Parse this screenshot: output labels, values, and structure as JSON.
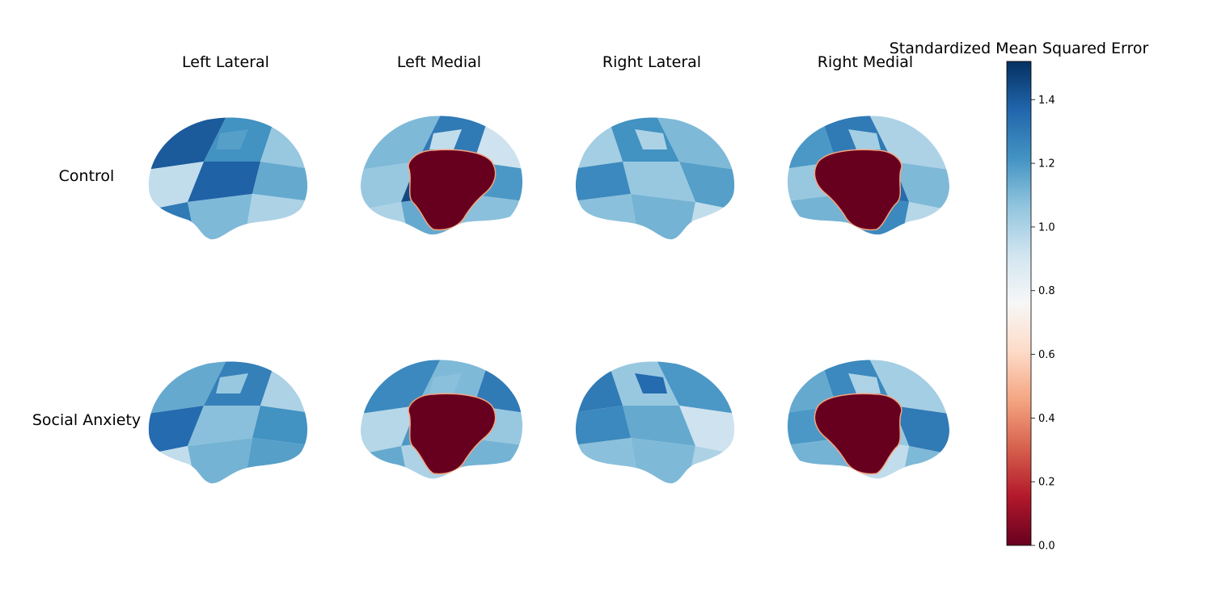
{
  "chart_data": {
    "type": "heatmap",
    "columns": [
      "Left Lateral",
      "Left Medial",
      "Right Lateral",
      "Right Medial"
    ],
    "rows": [
      "Control",
      "Social Anxiety"
    ],
    "colorbar": {
      "label": "Standardized Mean Squared Error",
      "range": [
        0.0,
        1.52
      ],
      "ticks": [
        0.0,
        0.2,
        0.4,
        0.6,
        0.8,
        1.0,
        1.2,
        1.4
      ],
      "tick_labels": [
        "0.0",
        "0.2",
        "0.4",
        "0.6",
        "0.8",
        "1.0",
        "1.2",
        "1.4"
      ],
      "colormap": "RdBu",
      "colors": [
        "#67001f",
        "#b2182b",
        "#d6604d",
        "#f4a582",
        "#fddbc7",
        "#f7f7f7",
        "#d1e5f0",
        "#92c5de",
        "#4393c3",
        "#2166ac",
        "#053061"
      ]
    },
    "panels": [
      {
        "row": "Control",
        "column": "Left Lateral",
        "values": [
          1.4,
          1.22,
          1.05,
          0.95,
          1.38,
          1.15,
          1.3,
          1.1,
          1.0,
          1.18
        ]
      },
      {
        "row": "Control",
        "column": "Left Medial",
        "values": [
          1.1,
          1.3,
          0.92,
          1.05,
          1.45,
          1.2,
          1.0,
          1.15,
          1.08,
          0.95
        ]
      },
      {
        "row": "Control",
        "column": "Right Lateral",
        "values": [
          1.1,
          1.22,
          1.02,
          1.18,
          1.05,
          1.25,
          0.95,
          1.12,
          1.08,
          1.0
        ]
      },
      {
        "row": "Control",
        "column": "Right Medial",
        "values": [
          1.0,
          1.3,
          1.2,
          1.1,
          1.35,
          1.05,
          0.98,
          1.25,
          1.12,
          1.02
        ]
      },
      {
        "row": "Social Anxiety",
        "column": "Left Lateral",
        "values": [
          1.15,
          1.28,
          1.0,
          1.35,
          1.08,
          1.22,
          0.95,
          1.12,
          1.18,
          1.05
        ]
      },
      {
        "row": "Social Anxiety",
        "column": "Left Medial",
        "values": [
          1.25,
          1.1,
          1.3,
          0.98,
          1.2,
          1.05,
          1.15,
          1.0,
          1.12,
          1.08
        ]
      },
      {
        "row": "Social Anxiety",
        "column": "Right Lateral",
        "values": [
          1.2,
          1.05,
          1.3,
          0.92,
          1.15,
          1.25,
          1.0,
          1.1,
          1.08,
          1.35
        ]
      },
      {
        "row": "Social Anxiety",
        "column": "Right Medial",
        "values": [
          1.02,
          1.25,
          1.15,
          1.3,
          1.05,
          1.2,
          1.1,
          0.95,
          1.12,
          1.0
        ]
      }
    ]
  }
}
